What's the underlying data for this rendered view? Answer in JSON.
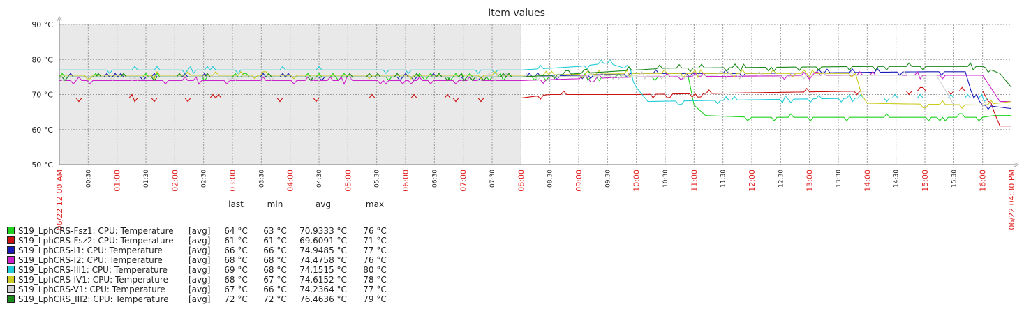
{
  "chart_data": {
    "type": "line",
    "title": "Item values",
    "y_unit": "°C",
    "ylim": [
      50,
      90
    ],
    "y_ticks": [
      "90 °C",
      "80 °C",
      "70 °C",
      "60 °C",
      "50 °C"
    ],
    "y_tick_values": [
      90,
      80,
      70,
      60,
      50
    ],
    "x_range": [
      "00:00",
      "16:30"
    ],
    "x_start_label": "06/22 12:00 AM",
    "x_end_label": "06/22 04:30 PM",
    "x_hour_labels": [
      "01:00",
      "02:00",
      "03:00",
      "04:00",
      "05:00",
      "06:00",
      "07:00",
      "08:00",
      "09:00",
      "10:00",
      "11:00",
      "12:00",
      "13:00",
      "14:00",
      "15:00",
      "16:00"
    ],
    "x_half_labels": [
      "00:30",
      "01:30",
      "02:30",
      "03:30",
      "04:30",
      "05:30",
      "06:30",
      "07:30",
      "08:30",
      "09:30",
      "10:30",
      "11:30",
      "12:30",
      "13:30",
      "14:30",
      "15:30"
    ],
    "shaded_period": [
      "00:00",
      "08:00"
    ],
    "grid": true,
    "legend_position": "bottom-left",
    "legend_columns": [
      "last",
      "min",
      "avg",
      "max"
    ],
    "legend": [
      {
        "name": "S19_LphCRS-Fsz1: CPU: Temperature",
        "func": "[avg]",
        "last": "64 °C",
        "min": "63 °C",
        "avg": "70.9333 °C",
        "max": "76 °C",
        "color": "#1ed41e"
      },
      {
        "name": "S19_LphCRS-Fsz2: CPU: Temperature",
        "func": "[avg]",
        "last": "61 °C",
        "min": "61 °C",
        "avg": "69.6091 °C",
        "max": "71 °C",
        "color": "#cc1111"
      },
      {
        "name": "S19_LphCRS-I1: CPU: Temperature",
        "func": "[avg]",
        "last": "66 °C",
        "min": "66 °C",
        "avg": "74.9485 °C",
        "max": "77 °C",
        "color": "#1a1ab8"
      },
      {
        "name": "S19_LphCRS-I2: CPU: Temperature",
        "func": "[avg]",
        "last": "68 °C",
        "min": "68 °C",
        "avg": "74.4758 °C",
        "max": "76 °C",
        "color": "#cc22cc"
      },
      {
        "name": "S19_LphCRS-III1: CPU: Temperature",
        "func": "[avg]",
        "last": "69 °C",
        "min": "68 °C",
        "avg": "74.1515 °C",
        "max": "80 °C",
        "color": "#22ccd8"
      },
      {
        "name": "S19_LphCRS-IV1: CPU: Temperature",
        "func": "[avg]",
        "last": "68 °C",
        "min": "67 °C",
        "avg": "74.6152 °C",
        "max": "78 °C",
        "color": "#cccc22"
      },
      {
        "name": "S19_LphCRS-V1: CPU: Temperature",
        "func": "[avg]",
        "last": "67 °C",
        "min": "66 °C",
        "avg": "74.2364 °C",
        "max": "77 °C",
        "color": "#cfcfcf"
      },
      {
        "name": "S19_LphCRS_III2: CPU: Temperature",
        "func": "[avg]",
        "last": "72 °C",
        "min": "72 °C",
        "avg": "76.4636 °C",
        "max": "79 °C",
        "color": "#1a8a1a"
      }
    ],
    "series": [
      {
        "name": "S19_LphCRS-Fsz1: CPU: Temperature",
        "color": "#1ed41e",
        "x": [
          0,
          8,
          10.9,
          11.0,
          11.2,
          12,
          14,
          16,
          16.2,
          16.5
        ],
        "y": [
          75,
          75,
          75,
          67,
          64,
          63.5,
          63.5,
          63.5,
          64,
          64
        ]
      },
      {
        "name": "S19_LphCRS-Fsz2: CPU: Temperature",
        "color": "#cc1111",
        "x": [
          0,
          8,
          8.5,
          10,
          14,
          16,
          16.2,
          16.3,
          16.5
        ],
        "y": [
          69,
          69,
          70,
          70,
          71,
          71,
          65,
          61,
          61
        ]
      },
      {
        "name": "S19_LphCRS-I1: CPU: Temperature",
        "color": "#1a1ab8",
        "x": [
          0,
          8,
          10,
          12,
          15,
          15.7,
          15.8,
          16,
          16.5
        ],
        "y": [
          75,
          75,
          76,
          76,
          76.5,
          76.5,
          71,
          67,
          66
        ]
      },
      {
        "name": "S19_LphCRS-I2: CPU: Temperature",
        "color": "#cc22cc",
        "x": [
          0,
          8,
          10,
          14,
          16,
          16.3,
          16.5
        ],
        "y": [
          74,
          74,
          75,
          75.5,
          75.5,
          68,
          68
        ]
      },
      {
        "name": "S19_LphCRS-III1: CPU: Temperature",
        "color": "#22ccd8",
        "x": [
          0,
          8,
          9,
          9.5,
          9.9,
          10.0,
          10.2,
          12,
          14,
          16.5
        ],
        "y": [
          77,
          77,
          78,
          79,
          77,
          72,
          68,
          68.5,
          69,
          69
        ]
      },
      {
        "name": "S19_LphCRS-IV1: CPU: Temperature",
        "color": "#cccc22",
        "x": [
          0,
          8,
          10,
          13.8,
          13.9,
          14,
          16,
          16.5
        ],
        "y": [
          75.5,
          75.5,
          76,
          76,
          70,
          67.5,
          67,
          68
        ]
      },
      {
        "name": "S19_LphCRS-V1: CPU: Temperature",
        "color": "#cfcfcf",
        "x": [
          0,
          8,
          10,
          15.2,
          15.4,
          15.5,
          16.5
        ],
        "y": [
          75,
          75,
          75.5,
          75.5,
          70,
          67,
          67
        ]
      },
      {
        "name": "S19_LphCRS_III2: CPU: Temperature",
        "color": "#1a8a1a",
        "x": [
          0,
          8,
          9,
          10.5,
          14,
          16,
          16.3,
          16.5
        ],
        "y": [
          75,
          75,
          76,
          77.5,
          78,
          78,
          76,
          72
        ]
      }
    ]
  }
}
